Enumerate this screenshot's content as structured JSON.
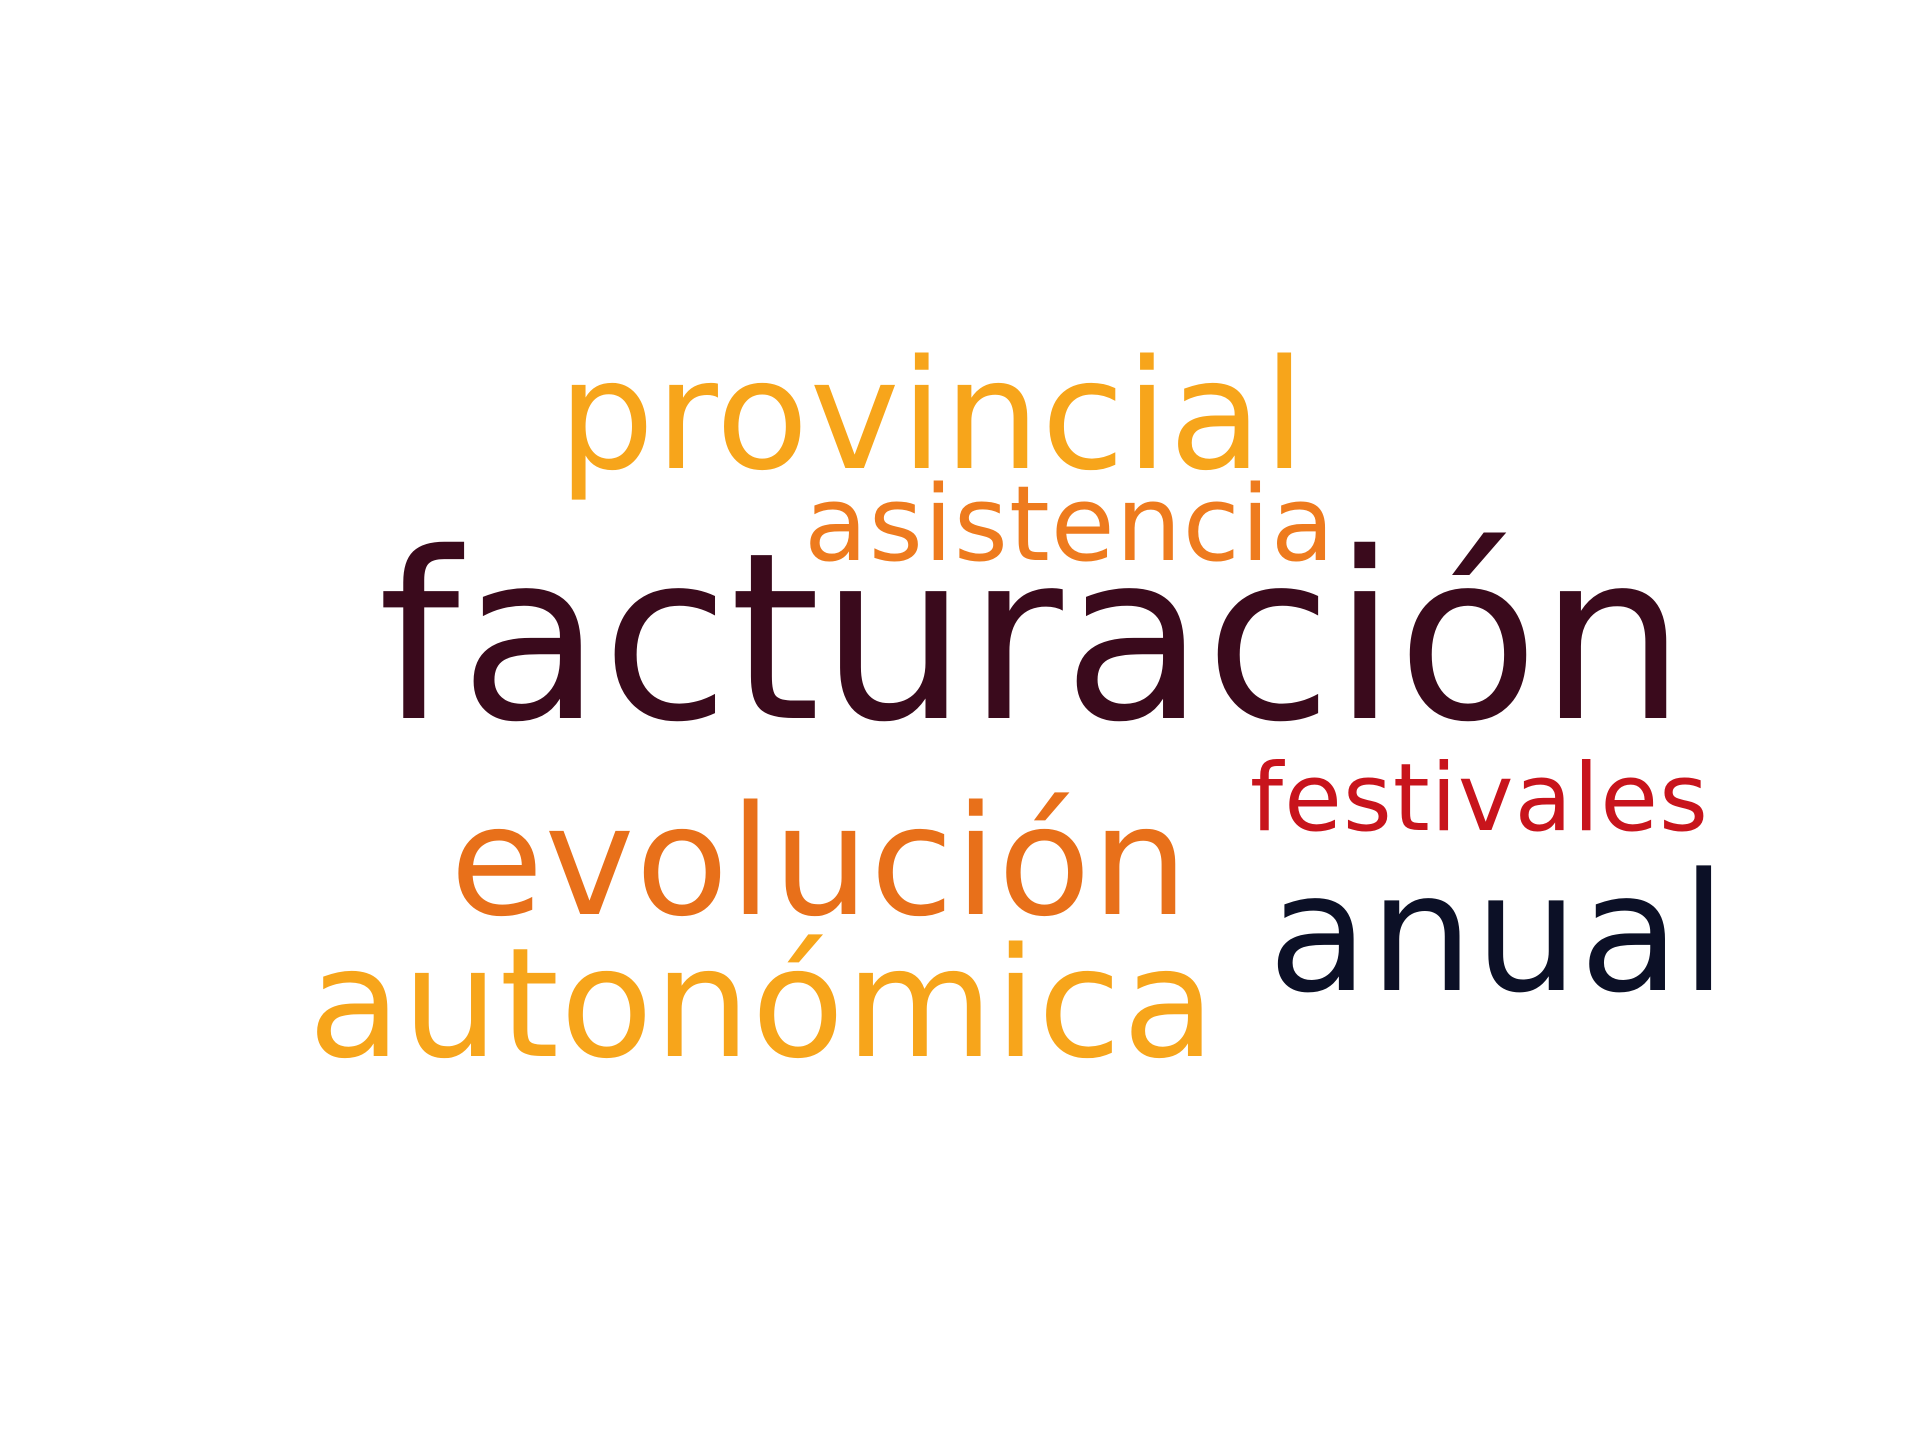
{
  "cloud": {
    "words": [
      {
        "text": "provincial",
        "color": "#F7A51B"
      },
      {
        "text": "asistencia",
        "color": "#EE7B1E"
      },
      {
        "text": "facturación",
        "color": "#3A0A1C"
      },
      {
        "text": "festivales",
        "color": "#C8141C"
      },
      {
        "text": "evolución",
        "color": "#E8701A"
      },
      {
        "text": "anual",
        "color": "#0C1026"
      },
      {
        "text": "autonómica",
        "color": "#F7A51B"
      }
    ]
  }
}
